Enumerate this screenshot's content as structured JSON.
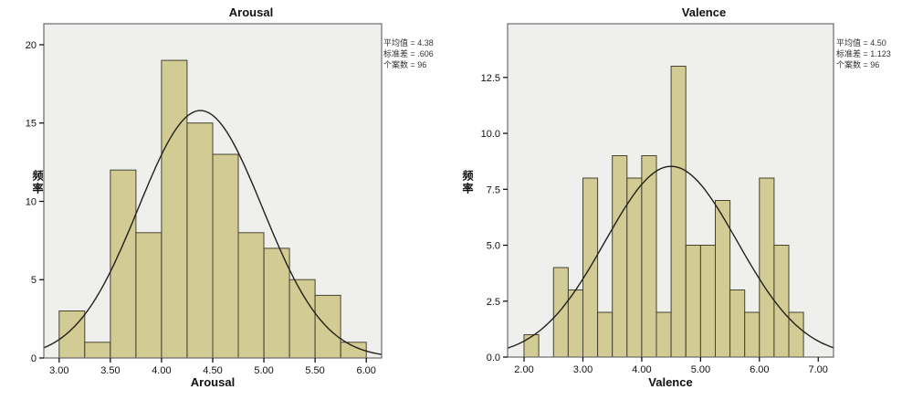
{
  "colors": {
    "bar_fill": "#d2cb93",
    "bar_stroke": "#45432f",
    "plot_bg": "#efefee",
    "frame": "#6b6b6b",
    "curve": "#22201a",
    "tick": "#000000"
  },
  "chart_data": [
    {
      "type": "bar",
      "chart_kind": "histogram",
      "title": "Arousal",
      "xlabel": "Arousal",
      "ylabel": "频率",
      "bin_start": 3.0,
      "bin_width": 0.25,
      "values": [
        3,
        1,
        12,
        8,
        19,
        15,
        13,
        8,
        7,
        5,
        4,
        1
      ],
      "xlim": [
        2.85,
        6.15
      ],
      "ylim": [
        0,
        21.34
      ],
      "x_ticks": [
        {
          "v": 3.0,
          "label": "3.00"
        },
        {
          "v": 3.5,
          "label": "3.50"
        },
        {
          "v": 4.0,
          "label": "4.00"
        },
        {
          "v": 4.5,
          "label": "4.50"
        },
        {
          "v": 5.0,
          "label": "5.00"
        },
        {
          "v": 5.5,
          "label": "5.50"
        },
        {
          "v": 6.0,
          "label": "6.00"
        }
      ],
      "y_ticks": [
        {
          "v": 0,
          "label": "0"
        },
        {
          "v": 5,
          "label": "5"
        },
        {
          "v": 10,
          "label": "10"
        },
        {
          "v": 15,
          "label": "15"
        },
        {
          "v": 20,
          "label": "20"
        }
      ],
      "normal_curve": {
        "mean": 4.38,
        "sd": 0.606,
        "n": 96
      },
      "stats": [
        "平均值 = 4.38",
        "标准差 = .606",
        "个案数 = 96"
      ],
      "grid": false,
      "legend": "none"
    },
    {
      "type": "bar",
      "chart_kind": "histogram",
      "title": "Valence",
      "xlabel": "Valence",
      "ylabel": "频率",
      "bin_start": 2.0,
      "bin_width": 0.25,
      "values": [
        1,
        0,
        4,
        3,
        8,
        2,
        9,
        8,
        9,
        2,
        13,
        5,
        5,
        7,
        3,
        2,
        8,
        5,
        2
      ],
      "xlim": [
        1.72,
        7.26
      ],
      "ylim": [
        0,
        14.9
      ],
      "x_ticks": [
        {
          "v": 2.0,
          "label": "2.00"
        },
        {
          "v": 3.0,
          "label": "3.00"
        },
        {
          "v": 4.0,
          "label": "4.00"
        },
        {
          "v": 5.0,
          "label": "5.00"
        },
        {
          "v": 6.0,
          "label": "6.00"
        },
        {
          "v": 7.0,
          "label": "7.00"
        }
      ],
      "y_ticks": [
        {
          "v": 0,
          "label": "0.0"
        },
        {
          "v": 2.5,
          "label": "2.5"
        },
        {
          "v": 5.0,
          "label": "5.0"
        },
        {
          "v": 7.5,
          "label": "7.5"
        },
        {
          "v": 10.0,
          "label": "10.0"
        },
        {
          "v": 12.5,
          "label": "12.5"
        }
      ],
      "normal_curve": {
        "mean": 4.5,
        "sd": 1.123,
        "n": 96
      },
      "stats": [
        "平均值 = 4.50",
        "标准差 = 1.123",
        "个案数 = 96"
      ],
      "grid": false,
      "legend": "none"
    }
  ]
}
